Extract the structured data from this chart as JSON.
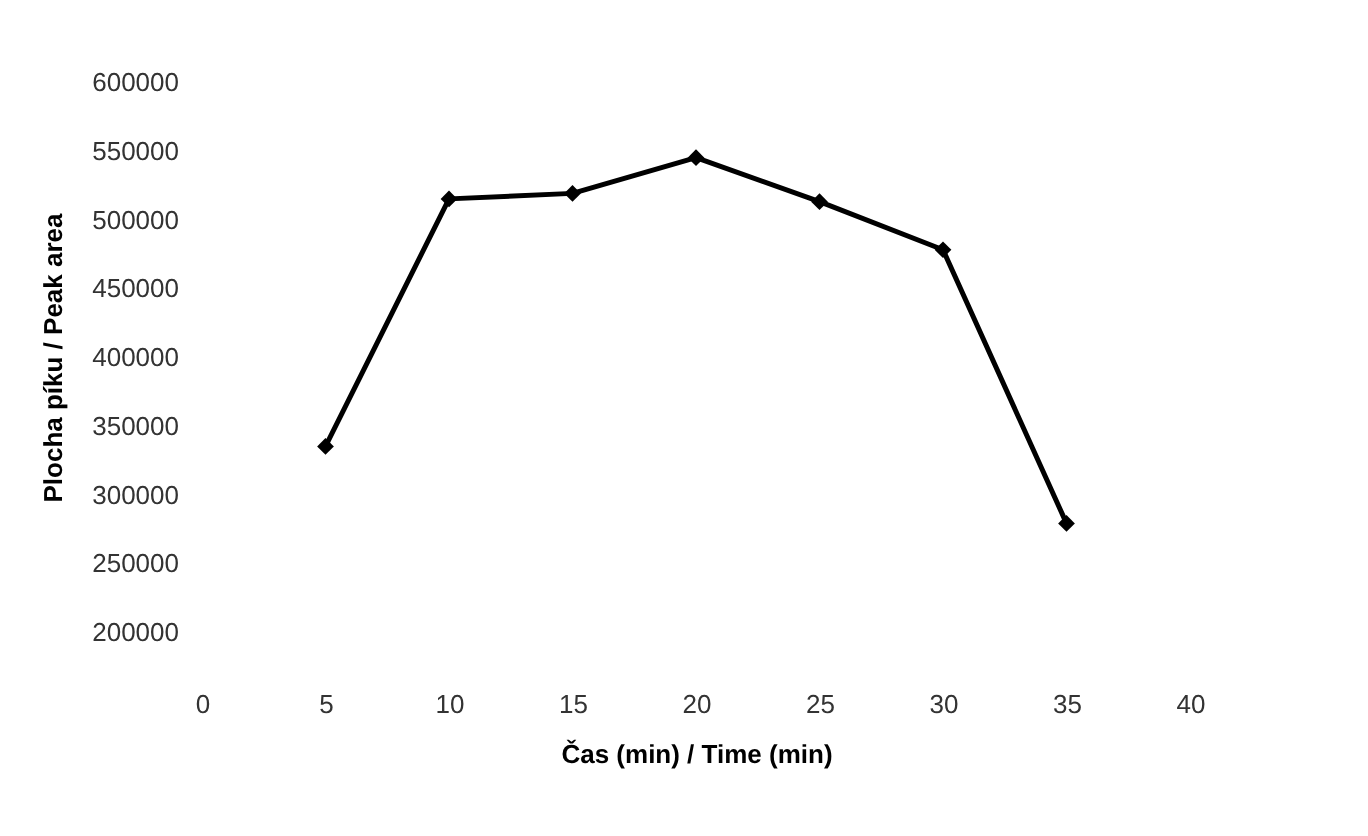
{
  "chart_data": {
    "type": "line",
    "xlabel": "Čas (min) / Time (min)",
    "ylabel": "Plocha píku / Peak area",
    "x": [
      5,
      10,
      15,
      20,
      25,
      30,
      35
    ],
    "series": [
      {
        "color": "#000000",
        "values": [
          335000,
          515000,
          519000,
          545000,
          513000,
          478000,
          279000
        ]
      }
    ],
    "xlim": [
      0,
      40
    ],
    "xticks": [
      0,
      5,
      10,
      15,
      20,
      25,
      30,
      35,
      40
    ],
    "ylim": [
      200000,
      600000
    ],
    "yticks": [
      200000,
      250000,
      300000,
      350000,
      400000,
      450000,
      500000,
      550000,
      600000
    ],
    "grid": false,
    "legend": false,
    "marker": "diamond",
    "line_style": "solid"
  }
}
